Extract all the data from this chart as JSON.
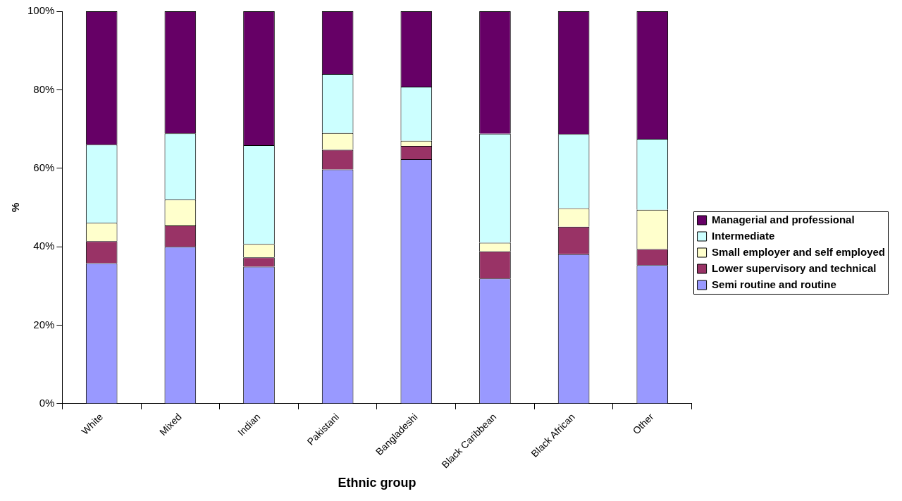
{
  "chart_data": {
    "type": "bar",
    "stacked": true,
    "xlabel": "Ethnic group",
    "ylabel": "%",
    "categories": [
      "White",
      "Mixed",
      "Indian",
      "Pakistani",
      "Bangladeshi",
      "Black Caribbean",
      "Black African",
      "Other"
    ],
    "series": [
      {
        "name": "Semi routine and routine",
        "color": "#9999ff",
        "values": [
          35.8,
          40.0,
          34.9,
          59.7,
          62.3,
          31.9,
          38.1,
          35.3
        ]
      },
      {
        "name": "Lower supervisory and technical",
        "color": "#993366",
        "values": [
          5.6,
          5.4,
          2.4,
          5.0,
          3.4,
          6.9,
          7.0,
          4.1
        ]
      },
      {
        "name": "Small employer and self employed",
        "color": "#ffffcc",
        "values": [
          4.7,
          6.6,
          3.4,
          4.3,
          1.3,
          2.2,
          4.7,
          10.0
        ]
      },
      {
        "name": "Intermediate",
        "color": "#ccffff",
        "values": [
          19.9,
          16.9,
          25.2,
          15.0,
          13.8,
          27.8,
          18.9,
          18.1
        ]
      },
      {
        "name": "Managerial and professional",
        "color": "#660066",
        "values": [
          34.0,
          31.1,
          34.1,
          16.0,
          19.2,
          31.2,
          31.3,
          32.5
        ]
      }
    ],
    "ylim": [
      0,
      100
    ],
    "yticks": [
      {
        "value": 0,
        "label": "0%"
      },
      {
        "value": 20,
        "label": "20%"
      },
      {
        "value": 40,
        "label": "40%"
      },
      {
        "value": 60,
        "label": "60%"
      },
      {
        "value": 80,
        "label": "80%"
      },
      {
        "value": 100,
        "label": "100%"
      }
    ],
    "grid": false,
    "legend": "right"
  }
}
